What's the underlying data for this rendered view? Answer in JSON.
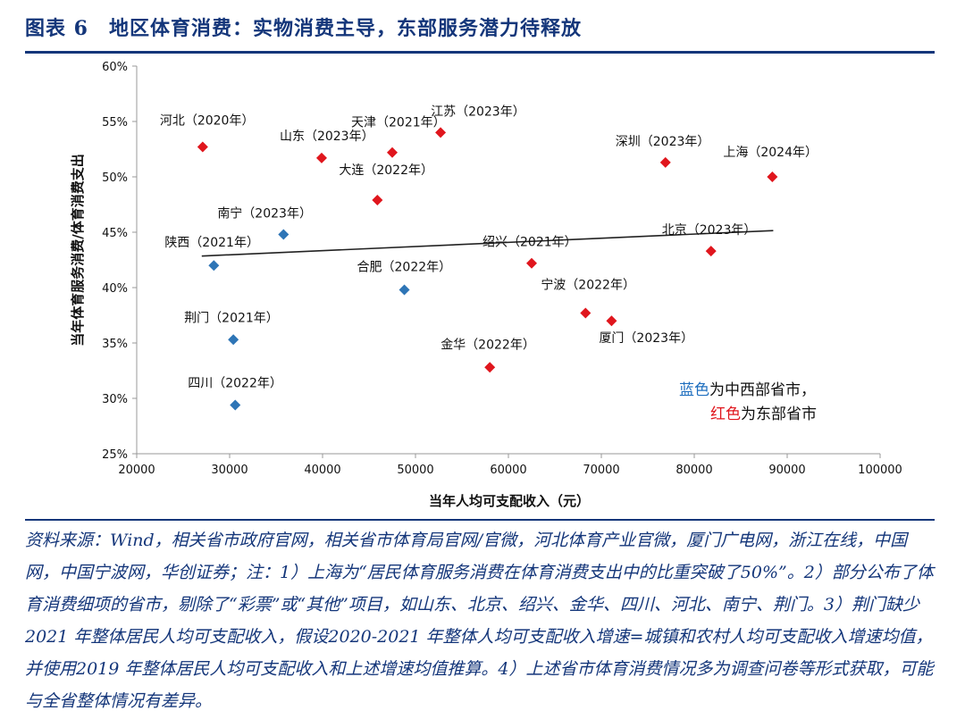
{
  "figure": {
    "title": "图表 6　地区体育消费：实物消费主导，东部服务潜力待释放",
    "note": "资料来源：Wind，相关省市政府官网，相关省市体育局官网/官微，河北体育产业官微，厦门广电网，浙江在线，中国网，中国宁波网，华创证券；注：1）上海为“居民体育服务消费在体育消费支出中的比重突破了50%”。2）部分公布了体育消费细项的省市，剔除了“彩票”或“其他”项目，如山东、北京、绍兴、金华、四川、河北、南宁、荆门。3）荆门缺少2021 年整体居民人均可支配收入，假设2020-2021 年整体人均可支配收入增速=城镇和农村人均可支配收入增速均值，并使用2019 年整体居民人均可支配收入和上述增速均值推算。4）上述省市体育消费情况多为调查问卷等形式获取，可能与全省整体情况有差异。"
  },
  "legend_text": {
    "blue_word": "蓝色",
    "blue_rest": "为中西部省市，",
    "red_word": "红色",
    "red_rest": "为东部省市"
  },
  "colors": {
    "red": "#e0161d",
    "blue": "#2e75b6",
    "accent": "#14367a",
    "axis": "#999999",
    "blue_text": "#1f6fbf",
    "red_text": "#e0161d"
  },
  "chart_data": {
    "type": "scatter",
    "xlabel": "当年人均可支配收入（元）",
    "ylabel": "当年体育服务消费/体育消费支出",
    "xlim": [
      20000,
      100000
    ],
    "ylim": [
      0.25,
      0.6
    ],
    "xticks": [
      20000,
      30000,
      40000,
      50000,
      60000,
      70000,
      80000,
      90000,
      100000
    ],
    "xtick_labels": [
      "20000",
      "30000",
      "40000",
      "50000",
      "60000",
      "70000",
      "80000",
      "90000",
      "100000"
    ],
    "yticks": [
      0.25,
      0.3,
      0.35,
      0.4,
      0.45,
      0.5,
      0.55,
      0.6
    ],
    "ytick_labels": [
      "25%",
      "30%",
      "35%",
      "40%",
      "45%",
      "50%",
      "55%",
      "60%"
    ],
    "grid": false,
    "trendline": {
      "x": [
        27000,
        88500
      ],
      "y": [
        0.4285,
        0.4515
      ]
    },
    "series": [
      {
        "group": "east",
        "color": "red",
        "points": [
          {
            "label": "河北（2020年）",
            "x": 27100,
            "y": 0.527
          },
          {
            "label": "山东（2023年）",
            "x": 39900,
            "y": 0.517
          },
          {
            "label": "天津（2021年）",
            "x": 47500,
            "y": 0.522
          },
          {
            "label": "江苏（2023年）",
            "x": 52700,
            "y": 0.54
          },
          {
            "label": "大连（2022年）",
            "x": 45900,
            "y": 0.479
          },
          {
            "label": "深圳（2023年）",
            "x": 76900,
            "y": 0.513
          },
          {
            "label": "上海（2024年）",
            "x": 88400,
            "y": 0.5
          },
          {
            "label": "北京（2023年）",
            "x": 81800,
            "y": 0.433
          },
          {
            "label": "绍兴（2021年）",
            "x": 62500,
            "y": 0.422
          },
          {
            "label": "宁波（2022年）",
            "x": 68300,
            "y": 0.377
          },
          {
            "label": "厦门（2023年）",
            "x": 71100,
            "y": 0.37
          },
          {
            "label": "金华（2022年）",
            "x": 58000,
            "y": 0.328
          }
        ]
      },
      {
        "group": "central-west",
        "color": "blue",
        "points": [
          {
            "label": "南宁（2023年）",
            "x": 35800,
            "y": 0.448
          },
          {
            "label": "陕西（2021年）",
            "x": 28300,
            "y": 0.42
          },
          {
            "label": "合肥（2022年）",
            "x": 48800,
            "y": 0.398
          },
          {
            "label": "荆门（2021年）",
            "x": 30400,
            "y": 0.353
          },
          {
            "label": "四川（2022年）",
            "x": 30600,
            "y": 0.294
          }
        ]
      }
    ]
  }
}
